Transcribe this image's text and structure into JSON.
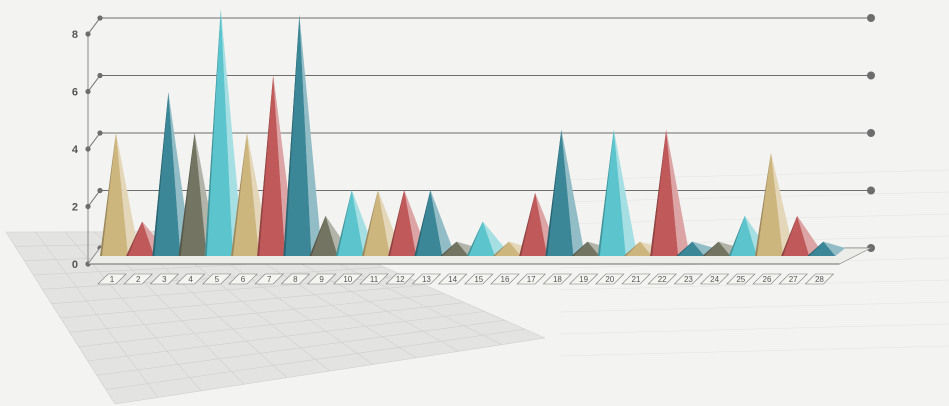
{
  "chart_data": {
    "type": "bar",
    "style": "3d-pyramid",
    "categories": [
      "1",
      "2",
      "3",
      "4",
      "5",
      "6",
      "7",
      "8",
      "9",
      "10",
      "11",
      "12",
      "13",
      "14",
      "15",
      "16",
      "17",
      "18",
      "19",
      "20",
      "21",
      "22",
      "23",
      "24",
      "25",
      "26",
      "27",
      "28"
    ],
    "values": [
      4.3,
      1.2,
      5.7,
      4.3,
      8.6,
      4.3,
      6.3,
      8.4,
      1.4,
      2.3,
      2.3,
      2.3,
      2.3,
      0.5,
      1.2,
      0.5,
      2.2,
      4.4,
      0.5,
      4.4,
      0.5,
      4.4,
      0.5,
      0.5,
      1.4,
      3.6,
      1.4,
      0.5
    ],
    "yticks": [
      "0",
      "2",
      "4",
      "6",
      "8"
    ],
    "ylim": [
      0,
      8
    ],
    "grid": true,
    "colors": [
      "#cdb57e",
      "#c05a5a",
      "#3b8797",
      "#737562",
      "#5bc4cc"
    ],
    "point_colors": [
      "#cdb57e",
      "#c05a5a",
      "#3b8797",
      "#737562",
      "#5bc4cc",
      "#cdb57e",
      "#c05a5a",
      "#3b8797",
      "#737562",
      "#5bc4cc",
      "#cdb57e",
      "#c05a5a",
      "#3b8797",
      "#737562",
      "#5bc4cc",
      "#cdb57e",
      "#c05a5a",
      "#3b8797",
      "#737562",
      "#5bc4cc",
      "#cdb57e",
      "#c05a5a",
      "#3b8797",
      "#737562",
      "#5bc4cc",
      "#cdb57e",
      "#c05a5a",
      "#3b8797"
    ]
  }
}
